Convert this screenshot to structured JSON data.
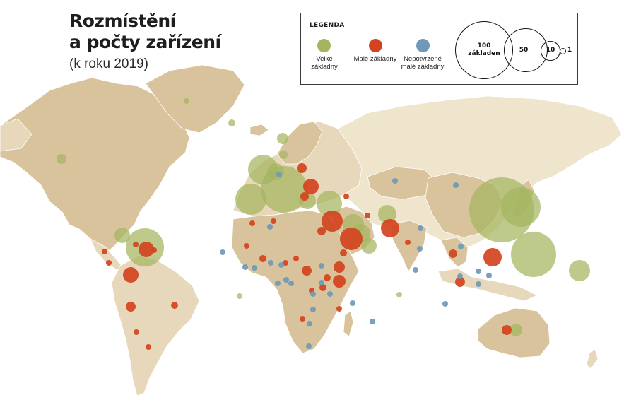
{
  "title_line1": "Rozmístění",
  "title_line2": "a počty zařízení",
  "subtitle": "(k roku 2019)",
  "legend": {
    "title": "LEGENDA",
    "categories": [
      {
        "label_l1": "Velké",
        "label_l2": "základny",
        "color": "#a3b55f"
      },
      {
        "label_l1": "Malé základny",
        "label_l2": "",
        "color": "#d4431f"
      },
      {
        "label_l1": "Nepotvrzené",
        "label_l2": "malé základny",
        "color": "#6e99b8"
      }
    ],
    "sizes": [
      {
        "value": "100",
        "unit": "základen"
      },
      {
        "value": "50"
      },
      {
        "value": "10"
      },
      {
        "value": "1"
      }
    ]
  },
  "colors": {
    "land": "#e8d8bb",
    "land_dark": "#d9c39c",
    "border": "#ffffff",
    "large": "#a3b55f",
    "small": "#d4431f",
    "unconfirmed": "#6e99b8"
  }
}
